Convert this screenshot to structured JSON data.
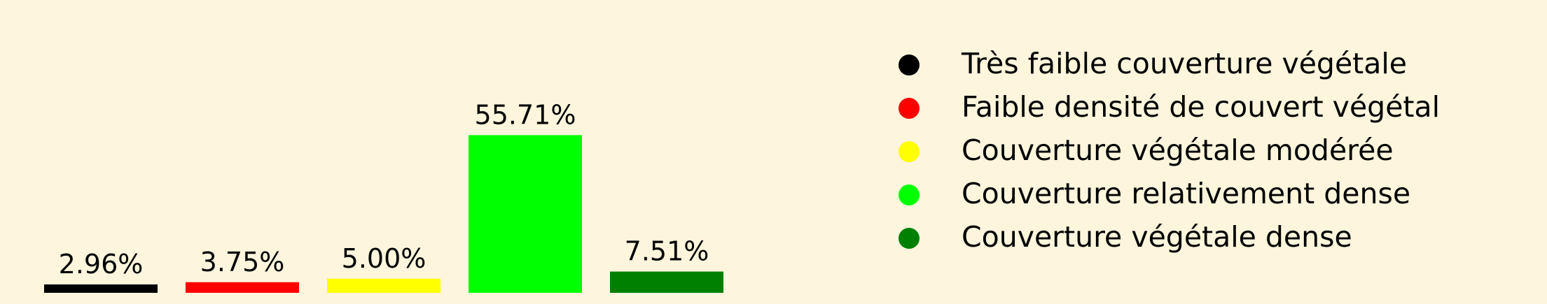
{
  "chart_data": {
    "type": "bar",
    "categories": [
      "Très faible couverture végétale",
      "Faible densité de couvert végétal",
      "Couverture végétale modérée",
      "Couverture relativement dense",
      "Couverture végétale dense"
    ],
    "values": [
      2.96,
      3.75,
      5.0,
      55.71,
      7.51
    ],
    "value_labels": [
      "2.96%",
      "3.75%",
      "5.00%",
      "55.71%",
      "7.51%"
    ],
    "colors": [
      "#000000",
      "#ff0000",
      "#ffff00",
      "#00ff00",
      "#008000"
    ],
    "unit": "%",
    "title": "",
    "xlabel": "",
    "ylabel": "",
    "ylim": [
      0,
      60
    ],
    "grid": false,
    "axes_visible": false,
    "background_color": "#fdf5dc",
    "legend_position": "right",
    "legend_marker": "circle"
  }
}
